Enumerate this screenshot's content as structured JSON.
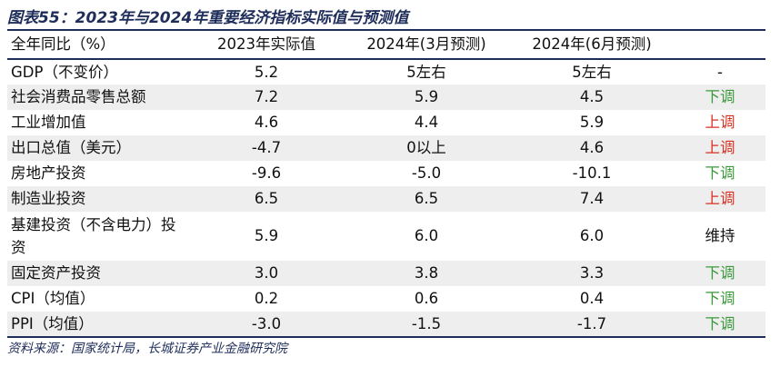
{
  "title": "图表55：2023年与2024年重要经济指标实际值与预测值",
  "table": {
    "headers": [
      "全年同比（%）",
      "2023年实际值",
      "2024年(3月预测)",
      "2024年(6月预测)",
      ""
    ],
    "rows": [
      {
        "label": "GDP（不变价）",
        "actual_2023": "5.2",
        "forecast_mar": "5左右",
        "forecast_jun": "5左右",
        "trend": "-",
        "trend_color": "#111111"
      },
      {
        "label": "社会消费品零售总额",
        "actual_2023": "7.2",
        "forecast_mar": "5.9",
        "forecast_jun": "4.5",
        "trend": "下调",
        "trend_color": "#3a9a3a"
      },
      {
        "label": "工业增加值",
        "actual_2023": "4.6",
        "forecast_mar": "4.4",
        "forecast_jun": "5.9",
        "trend": "上调",
        "trend_color": "#d83020"
      },
      {
        "label": "出口总值（美元）",
        "actual_2023": "-4.7",
        "forecast_mar": "0以上",
        "forecast_jun": "4.6",
        "trend": "上调",
        "trend_color": "#d83020"
      },
      {
        "label": "房地产投资",
        "actual_2023": "-9.6",
        "forecast_mar": "-5.0",
        "forecast_jun": "-10.1",
        "trend": "下调",
        "trend_color": "#3a9a3a"
      },
      {
        "label": "制造业投资",
        "actual_2023": "6.5",
        "forecast_mar": "6.5",
        "forecast_jun": "7.4",
        "trend": "上调",
        "trend_color": "#d83020"
      },
      {
        "label": "基建投资（不含电力）投资",
        "actual_2023": "5.9",
        "forecast_mar": "6.0",
        "forecast_jun": "6.0",
        "trend": "维持",
        "trend_color": "#111111"
      },
      {
        "label": "固定资产投资",
        "actual_2023": "3.0",
        "forecast_mar": "3.8",
        "forecast_jun": "3.3",
        "trend": "下调",
        "trend_color": "#3a9a3a"
      },
      {
        "label": "CPI（均值）",
        "actual_2023": "0.2",
        "forecast_mar": "0.6",
        "forecast_jun": "0.4",
        "trend": "下调",
        "trend_color": "#3a9a3a"
      },
      {
        "label": "PPI（均值）",
        "actual_2023": "-3.0",
        "forecast_mar": "-1.5",
        "forecast_jun": "-1.7",
        "trend": "下调",
        "trend_color": "#3a9a3a"
      }
    ]
  },
  "source": "资料来源：国家统计局，长城证券产业金融研究院"
}
